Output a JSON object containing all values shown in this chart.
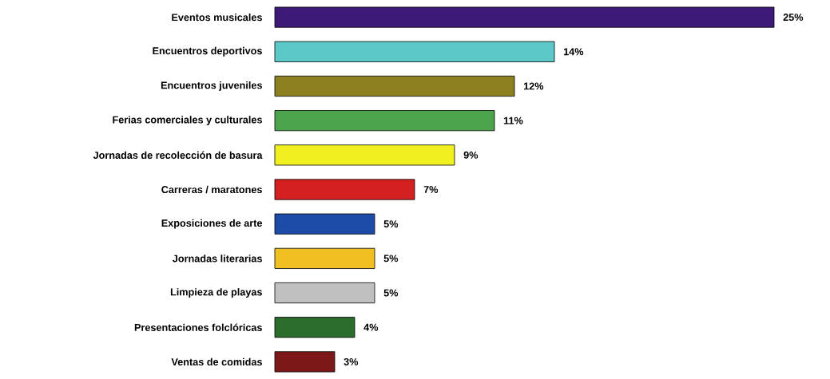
{
  "chart_data": {
    "type": "bar",
    "orientation": "horizontal",
    "tick_labels": "y",
    "categories": [
      "Eventos musicales",
      "Encuentros deportivos",
      "Encuentros juveniles",
      "Ferias comerciales y culturales",
      "Jornadas de recolección de basura",
      "Carreras / maratones",
      "Exposiciones de arte",
      "Jornadas literarias",
      "Limpieza de playas",
      "Presentaciones folclóricas",
      "Ventas de comidas"
    ],
    "values": [
      25,
      14,
      12,
      11,
      9,
      7,
      5,
      5,
      5,
      4,
      3
    ],
    "value_labels": [
      "25%",
      "14%",
      "12%",
      "11%",
      "9%",
      "7%",
      "5%",
      "5%",
      "5%",
      "4%",
      "3%"
    ],
    "colors": [
      "#3d1a78",
      "#5cc8c8",
      "#8c8020",
      "#4ca44c",
      "#f0f020",
      "#d42020",
      "#1c4ca8",
      "#f0c020",
      "#c0c0c0",
      "#2c6c2c",
      "#7c1818"
    ]
  }
}
